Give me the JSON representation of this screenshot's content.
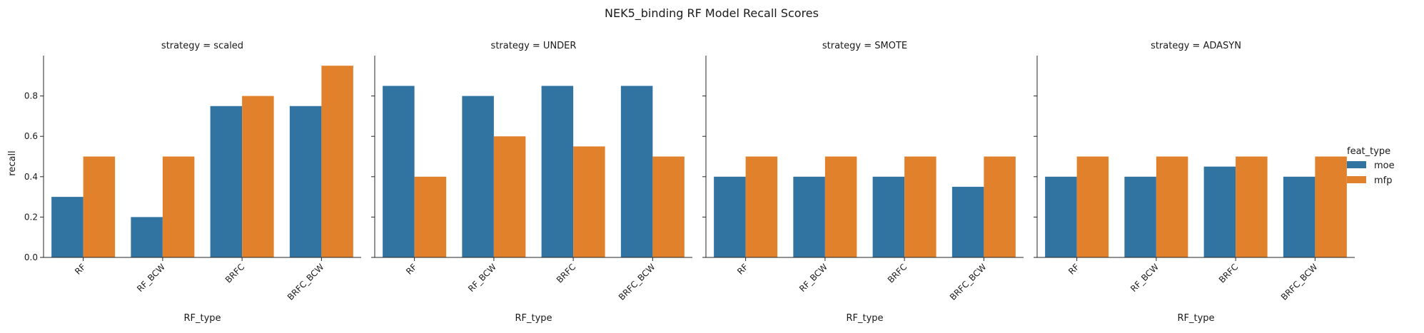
{
  "chart_data": {
    "type": "bar",
    "title": "NEK5_binding RF Model Recall Scores",
    "xlabel": "RF_type",
    "ylabel": "recall",
    "ylim": [
      0,
      1.0
    ],
    "yticks": [
      "0.0",
      "0.2",
      "0.4",
      "0.6",
      "0.8"
    ],
    "categories": [
      "RF",
      "RF_BCW",
      "BRFC",
      "BRFC_BCW"
    ],
    "legend": {
      "title": "feat_type",
      "placement": "right"
    },
    "series_names": [
      "moe",
      "mfp"
    ],
    "colors": {
      "moe": "#3274a1",
      "mfp": "#e1812c"
    },
    "grid": false,
    "panels": [
      {
        "title": "strategy = scaled",
        "series": [
          {
            "name": "moe",
            "values": [
              0.3,
              0.2,
              0.75,
              0.75
            ]
          },
          {
            "name": "mfp",
            "values": [
              0.5,
              0.5,
              0.8,
              0.95
            ]
          }
        ]
      },
      {
        "title": "strategy = UNDER",
        "series": [
          {
            "name": "moe",
            "values": [
              0.85,
              0.8,
              0.85,
              0.85
            ]
          },
          {
            "name": "mfp",
            "values": [
              0.4,
              0.6,
              0.55,
              0.5
            ]
          }
        ]
      },
      {
        "title": "strategy = SMOTE",
        "series": [
          {
            "name": "moe",
            "values": [
              0.4,
              0.4,
              0.4,
              0.35
            ]
          },
          {
            "name": "mfp",
            "values": [
              0.5,
              0.5,
              0.5,
              0.5
            ]
          }
        ]
      },
      {
        "title": "strategy = ADASYN",
        "series": [
          {
            "name": "moe",
            "values": [
              0.4,
              0.4,
              0.45,
              0.4
            ]
          },
          {
            "name": "mfp",
            "values": [
              0.5,
              0.5,
              0.5,
              0.5
            ]
          }
        ]
      }
    ]
  }
}
